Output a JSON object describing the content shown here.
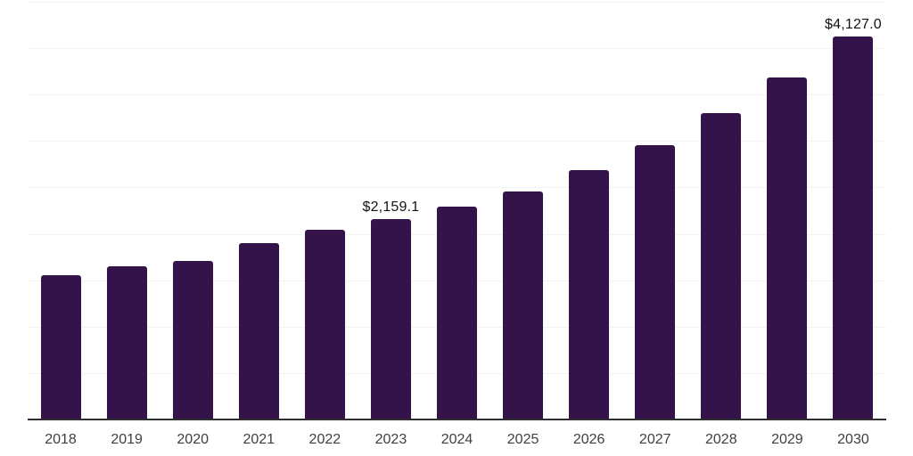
{
  "chart_data": {
    "type": "bar",
    "title": "",
    "xlabel": "",
    "ylabel": "",
    "categories": [
      "2018",
      "2019",
      "2020",
      "2021",
      "2022",
      "2023",
      "2024",
      "2025",
      "2026",
      "2027",
      "2028",
      "2029",
      "2030"
    ],
    "values": [
      1550,
      1655,
      1710,
      1900,
      2045,
      2159.1,
      2295,
      2455,
      2685,
      2955,
      3300,
      3680,
      4127.0
    ],
    "data_labels": [
      {
        "index": 5,
        "category": "2023",
        "text": "$2,159.1"
      },
      {
        "index": 12,
        "category": "2030",
        "text": "$4,127.0"
      }
    ],
    "ylim": [
      0,
      4500
    ],
    "gridline_step": 500,
    "grid": true,
    "legend": false,
    "colors": {
      "bar": "#33134a",
      "axis_line": "#2e2e2e",
      "gridline": "#f2f2f2",
      "tick_label": "#3f3f3f",
      "data_label": "#141414",
      "background": "#ffffff"
    }
  }
}
